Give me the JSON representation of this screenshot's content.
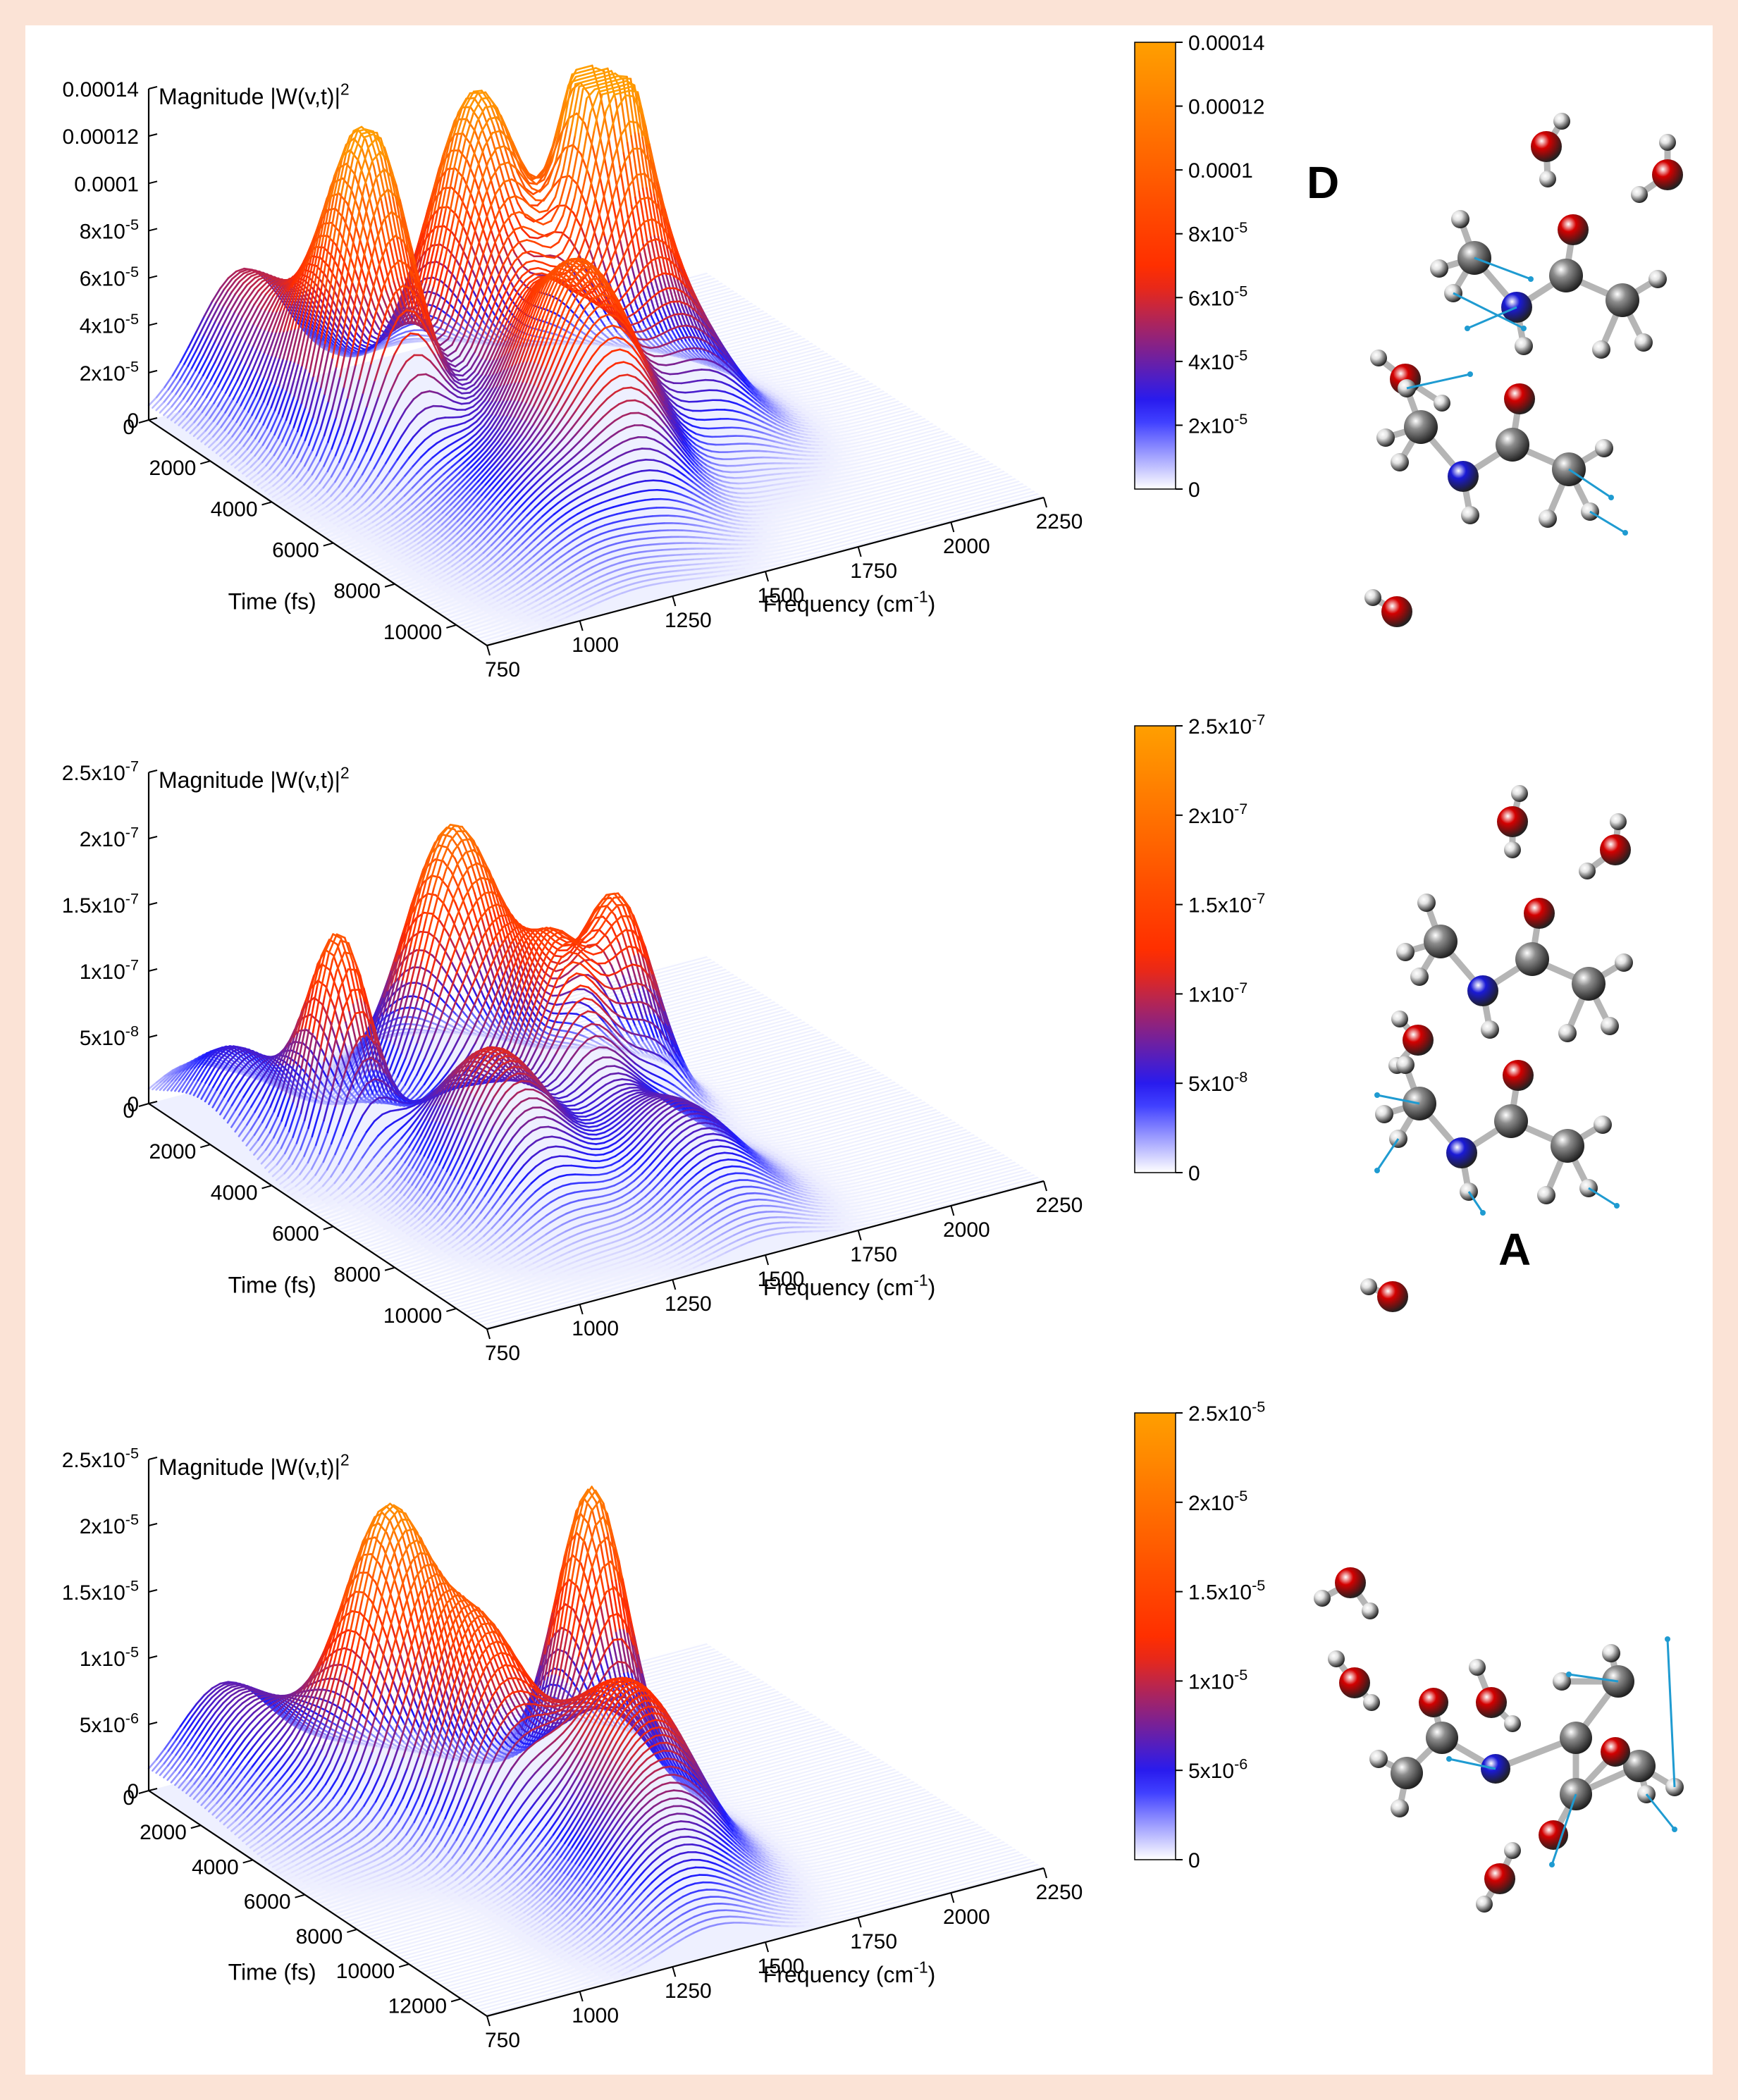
{
  "chart_data": [
    {
      "type": "surface3d",
      "zlabel": "Magnitude |W(v,t)|",
      "zlabel_sup": "2",
      "xlabel": "Frequency (cm",
      "xlabel_sup": "-1",
      "xlabel_close": ")",
      "ylabel": "Time (fs)",
      "x_ticks": [
        "750",
        "1000",
        "1250",
        "1500",
        "1750",
        "2000",
        "2250"
      ],
      "y_ticks": [
        "0",
        "2000",
        "4000",
        "6000",
        "8000",
        "10000"
      ],
      "z_ticks": [
        "0",
        "2x10^-5",
        "4x10^-5",
        "6x10^-5",
        "8x10^-5",
        "0.0001",
        "0.00012",
        "0.00014"
      ],
      "z_ticks_text": [
        {
          "base": "0",
          "exp": ""
        },
        {
          "base": "2x10",
          "exp": "-5"
        },
        {
          "base": "4x10",
          "exp": "-5"
        },
        {
          "base": "6x10",
          "exp": "-5"
        },
        {
          "base": "8x10",
          "exp": "-5"
        },
        {
          "base": "0.0001",
          "exp": ""
        },
        {
          "base": "0.00012",
          "exp": ""
        },
        {
          "base": "0.00014",
          "exp": ""
        }
      ],
      "colorbar_ticks_text": [
        {
          "base": "0",
          "exp": ""
        },
        {
          "base": "2x10",
          "exp": "-5"
        },
        {
          "base": "4x10",
          "exp": "-5"
        },
        {
          "base": "6x10",
          "exp": "-5"
        },
        {
          "base": "8x10",
          "exp": "-5"
        },
        {
          "base": "0.0001",
          "exp": ""
        },
        {
          "base": "0.00012",
          "exp": ""
        },
        {
          "base": "0.00014",
          "exp": ""
        }
      ],
      "xlim": [
        750,
        2250
      ],
      "ylim": [
        0,
        11000
      ],
      "zlim": [
        0,
        0.00014
      ],
      "peaks": [
        {
          "freq": 1000,
          "time": 600,
          "height": 5.5e-05,
          "fw": 170,
          "tw": 3300
        },
        {
          "freq": 1050,
          "time": 3600,
          "height": 0.00012,
          "fw": 120,
          "tw": 1400
        },
        {
          "freq": 1400,
          "time": 2800,
          "height": 0.00013,
          "fw": 140,
          "tw": 1500
        },
        {
          "freq": 1650,
          "time": 3800,
          "height": 0.00014,
          "fw": 110,
          "tw": 1200
        },
        {
          "freq": 1380,
          "time": 6500,
          "height": 9e-05,
          "fw": 160,
          "tw": 2200
        },
        {
          "freq": 1700,
          "time": 5200,
          "height": 6e-05,
          "fw": 180,
          "tw": 2000
        },
        {
          "freq": 1150,
          "time": 8000,
          "height": 3e-05,
          "fw": 200,
          "tw": 2500
        }
      ]
    },
    {
      "type": "surface3d",
      "zlabel": "Magnitude |W(v,t)|",
      "zlabel_sup": "2",
      "xlabel": "Frequency (cm",
      "xlabel_sup": "-1",
      "xlabel_close": ")",
      "ylabel": "Time (fs)",
      "x_ticks": [
        "750",
        "1000",
        "1250",
        "1500",
        "1750",
        "2000",
        "2250"
      ],
      "y_ticks": [
        "0",
        "2000",
        "4000",
        "6000",
        "8000",
        "10000"
      ],
      "z_ticks": [
        "0",
        "5x10^-8",
        "1x10^-7",
        "1.5x10^-7",
        "2x10^-7",
        "2.5x10^-7"
      ],
      "z_ticks_text": [
        {
          "base": "0",
          "exp": ""
        },
        {
          "base": "5x10",
          "exp": "-8"
        },
        {
          "base": "1x10",
          "exp": "-7"
        },
        {
          "base": "1.5x10",
          "exp": "-7"
        },
        {
          "base": "2x10",
          "exp": "-7"
        },
        {
          "base": "2.5x10",
          "exp": "-7"
        }
      ],
      "colorbar_ticks_text": [
        {
          "base": "0",
          "exp": ""
        },
        {
          "base": "5x10",
          "exp": "-8"
        },
        {
          "base": "1x10",
          "exp": "-7"
        },
        {
          "base": "1.5x10",
          "exp": "-7"
        },
        {
          "base": "2x10",
          "exp": "-7"
        },
        {
          "base": "2.5x10",
          "exp": "-7"
        }
      ],
      "xlim": [
        750,
        2250
      ],
      "ylim": [
        0,
        11000
      ],
      "zlim": [
        0,
        2.5e-07
      ],
      "peaks": [
        {
          "freq": 850,
          "time": 1800,
          "height": 6e-08,
          "fw": 120,
          "tw": 1800
        },
        {
          "freq": 950,
          "time": 3800,
          "height": 1.6e-07,
          "fw": 90,
          "tw": 1000
        },
        {
          "freq": 1350,
          "time": 2600,
          "height": 2e-07,
          "fw": 150,
          "tw": 1300
        },
        {
          "freq": 1450,
          "time": 4800,
          "height": 1.3e-07,
          "fw": 120,
          "tw": 1400
        },
        {
          "freq": 1650,
          "time": 4400,
          "height": 1.5e-07,
          "fw": 110,
          "tw": 1200
        },
        {
          "freq": 1150,
          "time": 6500,
          "height": 1.1e-07,
          "fw": 160,
          "tw": 2000
        },
        {
          "freq": 1500,
          "time": 8200,
          "height": 7e-08,
          "fw": 180,
          "tw": 2200
        }
      ]
    },
    {
      "type": "surface3d",
      "zlabel": "Magnitude |W(v,t)|",
      "zlabel_sup": "2",
      "xlabel": "Frequency (cm",
      "xlabel_sup": "-1",
      "xlabel_close": ")",
      "ylabel": "Time (fs)",
      "x_ticks": [
        "750",
        "1000",
        "1250",
        "1500",
        "1750",
        "2000",
        "2250"
      ],
      "y_ticks": [
        "0",
        "2000",
        "4000",
        "6000",
        "8000",
        "10000",
        "12000"
      ],
      "z_ticks": [
        "0",
        "5x10^-6",
        "1x10^-5",
        "1.5x10^-5",
        "2x10^-5",
        "2.5x10^-5"
      ],
      "z_ticks_text": [
        {
          "base": "0",
          "exp": ""
        },
        {
          "base": "5x10",
          "exp": "-6"
        },
        {
          "base": "1x10",
          "exp": "-5"
        },
        {
          "base": "1.5x10",
          "exp": "-5"
        },
        {
          "base": "2x10",
          "exp": "-5"
        },
        {
          "base": "2.5x10",
          "exp": "-5"
        }
      ],
      "colorbar_ticks_text": [
        {
          "base": "0",
          "exp": ""
        },
        {
          "base": "5x10",
          "exp": "-6"
        },
        {
          "base": "1x10",
          "exp": "-5"
        },
        {
          "base": "1.5x10",
          "exp": "-5"
        },
        {
          "base": "2x10",
          "exp": "-5"
        },
        {
          "base": "2.5x10",
          "exp": "-5"
        }
      ],
      "xlim": [
        750,
        2250
      ],
      "ylim": [
        0,
        13000
      ],
      "zlim": [
        0,
        2.5e-05
      ],
      "peaks": [
        {
          "freq": 950,
          "time": 800,
          "height": 7e-06,
          "fw": 170,
          "tw": 3500
        },
        {
          "freq": 1150,
          "time": 3400,
          "height": 2e-05,
          "fw": 130,
          "tw": 1500
        },
        {
          "freq": 1250,
          "time": 5600,
          "height": 1.5e-05,
          "fw": 140,
          "tw": 1800
        },
        {
          "freq": 1650,
          "time": 4200,
          "height": 2.1e-05,
          "fw": 100,
          "tw": 1300
        },
        {
          "freq": 1500,
          "time": 7800,
          "height": 1.2e-05,
          "fw": 160,
          "tw": 2600
        },
        {
          "freq": 1350,
          "time": 10500,
          "height": 6e-06,
          "fw": 180,
          "tw": 2500
        }
      ]
    }
  ],
  "panel_labels": [
    "D",
    "A"
  ],
  "colors": {
    "low": "#ffffff",
    "mid_low": "#1a1aff",
    "mid": "#ff2a00",
    "high": "#ff9f00",
    "atom_oxygen": "#d40000",
    "atom_nitrogen": "#1a1ad6",
    "atom_carbon": "#8c8c8c",
    "atom_hydrogen": "#e2e2e2",
    "arrow": "#1f9bd1",
    "background": "#fbe3d6"
  }
}
